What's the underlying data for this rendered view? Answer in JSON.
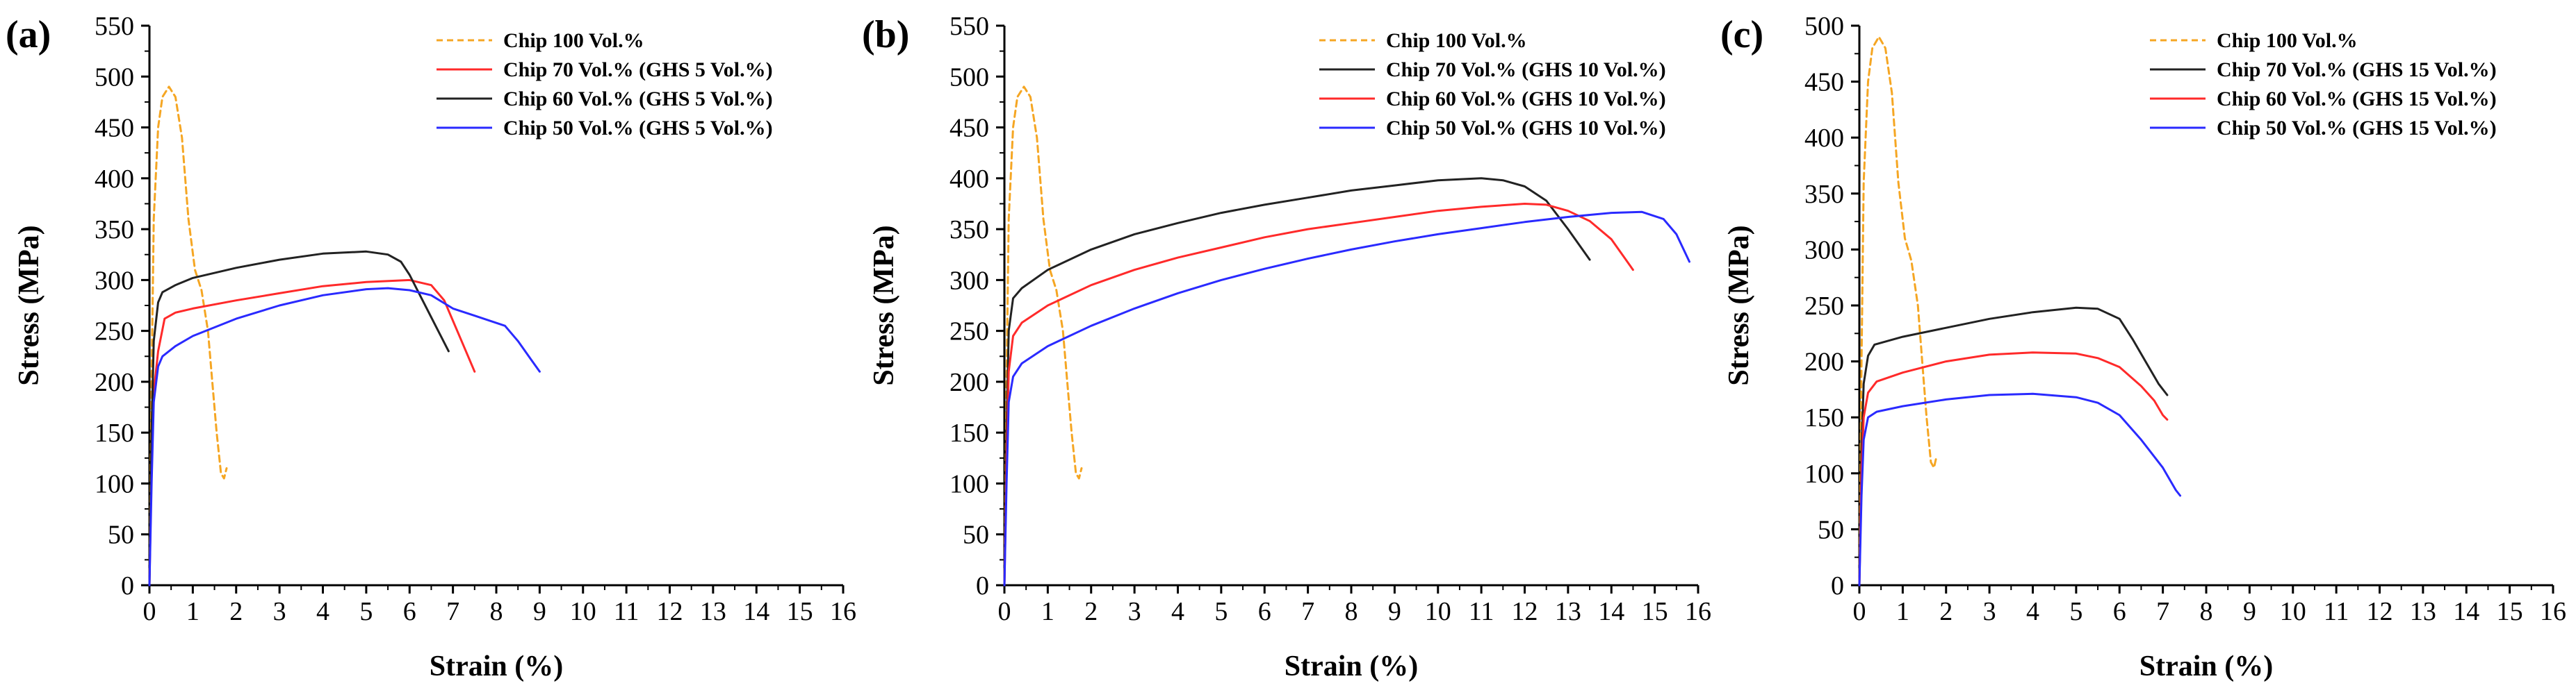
{
  "chart_data": [
    {
      "type": "line",
      "title": "(a)",
      "xlabel": "Strain (%)",
      "ylabel": "Stress (MPa)",
      "xlim": [
        0,
        16
      ],
      "ylim": [
        0,
        550
      ],
      "xticks": [
        0,
        1,
        2,
        3,
        4,
        5,
        6,
        7,
        8,
        9,
        10,
        11,
        12,
        13,
        14,
        15,
        16
      ],
      "yticks": [
        0,
        50,
        100,
        150,
        200,
        250,
        300,
        350,
        400,
        450,
        500,
        550
      ],
      "grid": false,
      "legend_position": "top-right",
      "series": [
        {
          "name": "Chip 100 Vol.%",
          "color": "#f5a623",
          "dash": "dashed",
          "points": [
            [
              0,
              0
            ],
            [
              0.05,
              200
            ],
            [
              0.1,
              360
            ],
            [
              0.2,
              450
            ],
            [
              0.3,
              480
            ],
            [
              0.45,
              490
            ],
            [
              0.6,
              480
            ],
            [
              0.75,
              440
            ],
            [
              0.9,
              360
            ],
            [
              1.05,
              310
            ],
            [
              1.2,
              290
            ],
            [
              1.35,
              250
            ],
            [
              1.45,
              200
            ],
            [
              1.55,
              150
            ],
            [
              1.65,
              110
            ],
            [
              1.72,
              105
            ],
            [
              1.78,
              115
            ]
          ]
        },
        {
          "name": "Chip 70 Vol.% (GHS 5 Vol.%)",
          "color": "#ff2a2a",
          "dash": "solid",
          "points": [
            [
              0,
              0
            ],
            [
              0.05,
              120
            ],
            [
              0.1,
              190
            ],
            [
              0.2,
              230
            ],
            [
              0.35,
              262
            ],
            [
              0.6,
              268
            ],
            [
              1,
              272
            ],
            [
              2,
              280
            ],
            [
              3,
              287
            ],
            [
              4,
              294
            ],
            [
              5,
              298
            ],
            [
              6,
              300
            ],
            [
              6.5,
              295
            ],
            [
              6.8,
              280
            ],
            [
              7,
              260
            ],
            [
              7.2,
              240
            ],
            [
              7.5,
              210
            ]
          ]
        },
        {
          "name": "Chip 60 Vol.% (GHS 5 Vol.%)",
          "color": "#222222",
          "dash": "solid",
          "points": [
            [
              0,
              0
            ],
            [
              0.05,
              150
            ],
            [
              0.1,
              240
            ],
            [
              0.2,
              278
            ],
            [
              0.3,
              288
            ],
            [
              0.6,
              295
            ],
            [
              1,
              302
            ],
            [
              2,
              312
            ],
            [
              3,
              320
            ],
            [
              4,
              326
            ],
            [
              4.5,
              327
            ],
            [
              5,
              328
            ],
            [
              5.5,
              325
            ],
            [
              5.8,
              318
            ],
            [
              6,
              305
            ],
            [
              6.3,
              280
            ],
            [
              6.6,
              255
            ],
            [
              6.9,
              230
            ]
          ]
        },
        {
          "name": "Chip 50 Vol.% (GHS 5 Vol.%)",
          "color": "#2a2aff",
          "dash": "solid",
          "points": [
            [
              0,
              0
            ],
            [
              0.05,
              100
            ],
            [
              0.1,
              180
            ],
            [
              0.2,
              215
            ],
            [
              0.3,
              225
            ],
            [
              0.6,
              235
            ],
            [
              1,
              245
            ],
            [
              2,
              262
            ],
            [
              3,
              275
            ],
            [
              4,
              285
            ],
            [
              5,
              291
            ],
            [
              5.5,
              292
            ],
            [
              6,
              290
            ],
            [
              6.5,
              285
            ],
            [
              7,
              272
            ],
            [
              7.5,
              265
            ],
            [
              8.2,
              255
            ],
            [
              8.5,
              240
            ],
            [
              8.8,
              222
            ],
            [
              9,
              210
            ]
          ]
        }
      ]
    },
    {
      "type": "line",
      "title": "(b)",
      "xlabel": "Strain (%)",
      "ylabel": "Stress (MPa)",
      "xlim": [
        0,
        16
      ],
      "ylim": [
        0,
        550
      ],
      "xticks": [
        0,
        1,
        2,
        3,
        4,
        5,
        6,
        7,
        8,
        9,
        10,
        11,
        12,
        13,
        14,
        15,
        16
      ],
      "yticks": [
        0,
        50,
        100,
        150,
        200,
        250,
        300,
        350,
        400,
        450,
        500,
        550
      ],
      "grid": false,
      "legend_position": "top-right",
      "series": [
        {
          "name": "Chip 100 Vol.%",
          "color": "#f5a623",
          "dash": "dashed",
          "points": [
            [
              0,
              0
            ],
            [
              0.05,
              200
            ],
            [
              0.1,
              360
            ],
            [
              0.2,
              450
            ],
            [
              0.3,
              480
            ],
            [
              0.45,
              490
            ],
            [
              0.6,
              480
            ],
            [
              0.75,
              440
            ],
            [
              0.9,
              360
            ],
            [
              1.05,
              310
            ],
            [
              1.2,
              290
            ],
            [
              1.35,
              250
            ],
            [
              1.45,
              200
            ],
            [
              1.55,
              150
            ],
            [
              1.65,
              110
            ],
            [
              1.72,
              105
            ],
            [
              1.78,
              115
            ]
          ]
        },
        {
          "name": "Chip 70 Vol.% (GHS 10 Vol.%)",
          "color": "#222222",
          "dash": "solid",
          "points": [
            [
              0,
              0
            ],
            [
              0.05,
              150
            ],
            [
              0.1,
              250
            ],
            [
              0.2,
              282
            ],
            [
              0.4,
              292
            ],
            [
              1,
              310
            ],
            [
              2,
              330
            ],
            [
              3,
              345
            ],
            [
              4,
              356
            ],
            [
              5,
              366
            ],
            [
              6,
              374
            ],
            [
              7,
              381
            ],
            [
              8,
              388
            ],
            [
              9,
              393
            ],
            [
              10,
              398
            ],
            [
              11,
              400
            ],
            [
              11.5,
              398
            ],
            [
              12,
              392
            ],
            [
              12.5,
              378
            ],
            [
              13,
              350
            ],
            [
              13.5,
              320
            ]
          ]
        },
        {
          "name": "Chip 60 Vol.% (GHS 10 Vol.%)",
          "color": "#ff2a2a",
          "dash": "solid",
          "points": [
            [
              0,
              0
            ],
            [
              0.05,
              120
            ],
            [
              0.1,
              210
            ],
            [
              0.2,
              245
            ],
            [
              0.4,
              258
            ],
            [
              1,
              275
            ],
            [
              2,
              295
            ],
            [
              3,
              310
            ],
            [
              4,
              322
            ],
            [
              5,
              332
            ],
            [
              6,
              342
            ],
            [
              7,
              350
            ],
            [
              8,
              356
            ],
            [
              9,
              362
            ],
            [
              10,
              368
            ],
            [
              11,
              372
            ],
            [
              12,
              375
            ],
            [
              12.5,
              374
            ],
            [
              13,
              368
            ],
            [
              13.5,
              358
            ],
            [
              14,
              340
            ],
            [
              14.3,
              322
            ],
            [
              14.5,
              310
            ]
          ]
        },
        {
          "name": "Chip 50 Vol.% (GHS 10 Vol.%)",
          "color": "#2a2aff",
          "dash": "solid",
          "points": [
            [
              0,
              0
            ],
            [
              0.05,
              100
            ],
            [
              0.1,
              180
            ],
            [
              0.2,
              205
            ],
            [
              0.4,
              218
            ],
            [
              1,
              235
            ],
            [
              2,
              255
            ],
            [
              3,
              272
            ],
            [
              4,
              287
            ],
            [
              5,
              300
            ],
            [
              6,
              311
            ],
            [
              7,
              321
            ],
            [
              8,
              330
            ],
            [
              9,
              338
            ],
            [
              10,
              345
            ],
            [
              11,
              351
            ],
            [
              12,
              357
            ],
            [
              13,
              362
            ],
            [
              14,
              366
            ],
            [
              14.7,
              367
            ],
            [
              15.2,
              360
            ],
            [
              15.5,
              345
            ],
            [
              15.8,
              318
            ]
          ]
        }
      ]
    },
    {
      "type": "line",
      "title": "(c)",
      "xlabel": "Strain (%)",
      "ylabel": "Stress (MPa)",
      "xlim": [
        0,
        16
      ],
      "ylim": [
        0,
        500
      ],
      "xticks": [
        0,
        1,
        2,
        3,
        4,
        5,
        6,
        7,
        8,
        9,
        10,
        11,
        12,
        13,
        14,
        15,
        16
      ],
      "yticks": [
        0,
        50,
        100,
        150,
        200,
        250,
        300,
        350,
        400,
        450,
        500
      ],
      "grid": false,
      "legend_position": "top-right",
      "series": [
        {
          "name": "Chip 100 Vol.%",
          "color": "#f5a623",
          "dash": "dashed",
          "points": [
            [
              0,
              0
            ],
            [
              0.05,
              200
            ],
            [
              0.1,
              360
            ],
            [
              0.2,
              450
            ],
            [
              0.3,
              480
            ],
            [
              0.45,
              490
            ],
            [
              0.6,
              480
            ],
            [
              0.75,
              440
            ],
            [
              0.9,
              360
            ],
            [
              1.05,
              310
            ],
            [
              1.2,
              290
            ],
            [
              1.35,
              250
            ],
            [
              1.45,
              200
            ],
            [
              1.55,
              150
            ],
            [
              1.65,
              110
            ],
            [
              1.72,
              105
            ],
            [
              1.78,
              115
            ]
          ]
        },
        {
          "name": "Chip 70 Vol.% (GHS 15 Vol.%)",
          "color": "#222222",
          "dash": "solid",
          "points": [
            [
              0,
              0
            ],
            [
              0.05,
              120
            ],
            [
              0.1,
              180
            ],
            [
              0.2,
              205
            ],
            [
              0.35,
              215
            ],
            [
              1,
              222
            ],
            [
              2,
              230
            ],
            [
              3,
              238
            ],
            [
              4,
              244
            ],
            [
              5,
              248
            ],
            [
              5.5,
              247
            ],
            [
              6,
              238
            ],
            [
              6.3,
              220
            ],
            [
              6.6,
              200
            ],
            [
              6.9,
              180
            ],
            [
              7.1,
              170
            ]
          ]
        },
        {
          "name": "Chip 60 Vol.% (GHS 15 Vol.%)",
          "color": "#ff2a2a",
          "dash": "solid",
          "points": [
            [
              0,
              0
            ],
            [
              0.05,
              100
            ],
            [
              0.1,
              150
            ],
            [
              0.2,
              172
            ],
            [
              0.4,
              182
            ],
            [
              1,
              190
            ],
            [
              2,
              200
            ],
            [
              3,
              206
            ],
            [
              4,
              208
            ],
            [
              5,
              207
            ],
            [
              5.5,
              203
            ],
            [
              6,
              195
            ],
            [
              6.5,
              178
            ],
            [
              6.8,
              165
            ],
            [
              7,
              152
            ],
            [
              7.1,
              148
            ]
          ]
        },
        {
          "name": "Chip 50 Vol.% (GHS 15 Vol.%)",
          "color": "#2a2aff",
          "dash": "solid",
          "points": [
            [
              0,
              0
            ],
            [
              0.05,
              80
            ],
            [
              0.1,
              130
            ],
            [
              0.2,
              150
            ],
            [
              0.4,
              155
            ],
            [
              1,
              160
            ],
            [
              2,
              166
            ],
            [
              3,
              170
            ],
            [
              4,
              171
            ],
            [
              5,
              168
            ],
            [
              5.5,
              163
            ],
            [
              6,
              152
            ],
            [
              6.5,
              130
            ],
            [
              7,
              105
            ],
            [
              7.3,
              85
            ],
            [
              7.4,
              80
            ]
          ]
        }
      ]
    }
  ]
}
